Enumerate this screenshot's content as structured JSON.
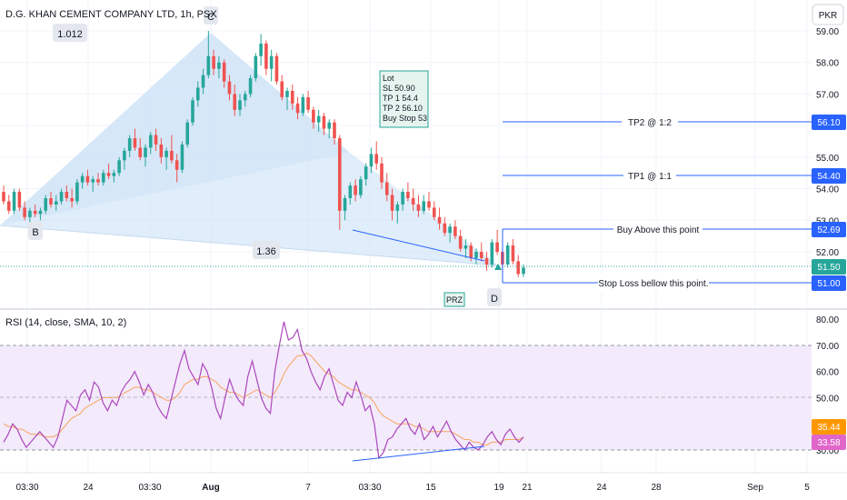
{
  "header": {
    "title": "D.G. KHAN CEMENT COMPANY LTD, 1h, PSX",
    "currency": "PKR"
  },
  "rsi_title": "RSI (14, close, SMA, 10, 2)",
  "colors": {
    "up": "#26a69a",
    "down": "#ef5350",
    "pattern_fill": "#cfe3f7",
    "line_blue": "#2962ff",
    "rsi": "#ab47bc",
    "rsi_sma": "#f7a35c",
    "rsi_band": "#f3eafb",
    "label_blue": "#2962ff",
    "label_green": "#26a69a",
    "label_red": "#ef5350",
    "label_orange": "#ff9800",
    "label_pink": "#e066c9"
  },
  "chart_data": [
    {
      "type": "candlestick",
      "ylim": [
        50.4,
        59.2
      ],
      "y_ticks": [
        "59.00",
        "58.00",
        "57.00",
        "56.00",
        "55.00",
        "54.00",
        "53.00",
        "52.00"
      ],
      "x_ticks": [
        "03:30",
        "24",
        "03:30",
        "Aug",
        "7",
        "03:30",
        "15",
        "19",
        "21",
        "24",
        "28",
        "Sep",
        "5"
      ],
      "harmonic_points": [
        {
          "name": "B",
          "value": "B"
        },
        {
          "name": "C",
          "value": "C"
        },
        {
          "name": "D",
          "value": "D"
        }
      ],
      "ratios": [
        "1.012",
        "1.36"
      ],
      "zone_label": "PRZ",
      "trade_box": [
        "Lot",
        "SL  50.90",
        "TP 1  54.4",
        "TP 2  56.10",
        "Buy Stop  53"
      ],
      "levels": [
        {
          "label": "TP2 @ 1:2",
          "price": 56.1,
          "tag": "56.10"
        },
        {
          "label": "TP1 @ 1:1",
          "price": 54.4,
          "tag": "54.40"
        },
        {
          "label": "Buy Above this point",
          "price": 52.69,
          "tag": "52.69"
        },
        {
          "label": "Stop Loss bellow this point.",
          "price": 51.0,
          "tag": "51.00"
        }
      ],
      "last_price": "51.50",
      "ohlc": [
        [
          53.9,
          54.1,
          53.5,
          53.6
        ],
        [
          53.6,
          53.8,
          53.2,
          53.3
        ],
        [
          53.3,
          54.0,
          53.2,
          53.9
        ],
        [
          53.9,
          54.0,
          53.3,
          53.4
        ],
        [
          53.4,
          53.6,
          53.0,
          53.1
        ],
        [
          53.1,
          53.4,
          52.9,
          53.3
        ],
        [
          53.3,
          53.5,
          53.1,
          53.2
        ],
        [
          53.2,
          53.4,
          53.0,
          53.3
        ],
        [
          53.3,
          53.8,
          53.2,
          53.7
        ],
        [
          53.7,
          53.9,
          53.4,
          53.5
        ],
        [
          53.5,
          53.8,
          53.3,
          53.6
        ],
        [
          53.6,
          54.0,
          53.5,
          53.9
        ],
        [
          53.9,
          54.1,
          53.6,
          53.7
        ],
        [
          53.7,
          54.0,
          53.4,
          53.6
        ],
        [
          53.6,
          54.3,
          53.5,
          54.2
        ],
        [
          54.2,
          54.5,
          54.0,
          54.4
        ],
        [
          54.4,
          54.6,
          54.1,
          54.2
        ],
        [
          54.2,
          54.4,
          53.9,
          54.3
        ],
        [
          54.3,
          54.5,
          54.1,
          54.2
        ],
        [
          54.2,
          54.6,
          54.1,
          54.5
        ],
        [
          54.5,
          54.8,
          54.3,
          54.4
        ],
        [
          54.4,
          54.6,
          54.2,
          54.5
        ],
        [
          54.5,
          55.0,
          54.4,
          54.9
        ],
        [
          54.9,
          55.3,
          54.6,
          55.2
        ],
        [
          55.2,
          55.7,
          55.0,
          55.6
        ],
        [
          55.6,
          55.9,
          55.2,
          55.3
        ],
        [
          55.3,
          55.6,
          54.9,
          55.0
        ],
        [
          55.0,
          55.4,
          54.7,
          55.3
        ],
        [
          55.3,
          55.8,
          55.1,
          55.7
        ],
        [
          55.7,
          55.9,
          55.2,
          55.4
        ],
        [
          55.4,
          55.6,
          54.8,
          55.0
        ],
        [
          55.0,
          55.3,
          54.6,
          55.2
        ],
        [
          55.2,
          55.7,
          54.8,
          54.9
        ],
        [
          54.9,
          55.1,
          54.2,
          54.6
        ],
        [
          54.6,
          55.5,
          54.5,
          55.4
        ],
        [
          55.4,
          56.2,
          55.3,
          56.1
        ],
        [
          56.1,
          56.9,
          56.0,
          56.8
        ],
        [
          56.8,
          57.4,
          56.6,
          57.2
        ],
        [
          57.2,
          57.8,
          57.0,
          57.6
        ],
        [
          57.6,
          59.0,
          57.5,
          58.2
        ],
        [
          58.2,
          58.4,
          57.6,
          57.8
        ],
        [
          57.8,
          58.2,
          57.5,
          58.0
        ],
        [
          58.0,
          58.1,
          57.2,
          57.4
        ],
        [
          57.4,
          57.6,
          56.8,
          57.0
        ],
        [
          57.0,
          57.3,
          56.3,
          56.5
        ],
        [
          56.5,
          57.0,
          56.3,
          56.8
        ],
        [
          56.8,
          57.1,
          56.6,
          57.0
        ],
        [
          57.0,
          57.6,
          56.9,
          57.5
        ],
        [
          57.5,
          58.3,
          57.4,
          58.2
        ],
        [
          58.2,
          58.9,
          57.9,
          58.6
        ],
        [
          58.6,
          58.7,
          57.6,
          57.8
        ],
        [
          57.8,
          58.4,
          57.4,
          58.2
        ],
        [
          58.2,
          58.3,
          57.3,
          57.4
        ],
        [
          57.4,
          57.6,
          56.8,
          56.9
        ],
        [
          56.9,
          57.2,
          56.5,
          57.1
        ],
        [
          57.1,
          57.3,
          56.5,
          56.7
        ],
        [
          56.7,
          56.9,
          56.2,
          56.4
        ],
        [
          56.4,
          57.0,
          56.3,
          56.9
        ],
        [
          56.9,
          57.1,
          56.4,
          56.5
        ],
        [
          56.5,
          56.6,
          55.9,
          56.1
        ],
        [
          56.1,
          56.5,
          55.8,
          56.3
        ],
        [
          56.3,
          56.4,
          55.7,
          55.9
        ],
        [
          55.9,
          56.2,
          55.6,
          56.1
        ],
        [
          56.1,
          56.2,
          55.4,
          55.6
        ],
        [
          55.6,
          55.7,
          52.7,
          53.3
        ],
        [
          53.3,
          53.8,
          53.0,
          53.7
        ],
        [
          53.7,
          54.2,
          53.5,
          54.1
        ],
        [
          54.1,
          54.3,
          53.6,
          53.8
        ],
        [
          53.8,
          54.4,
          53.7,
          54.3
        ],
        [
          54.3,
          54.8,
          54.1,
          54.7
        ],
        [
          54.7,
          55.3,
          54.5,
          55.1
        ],
        [
          55.1,
          55.5,
          54.6,
          54.8
        ],
        [
          54.8,
          55.0,
          54.0,
          54.2
        ],
        [
          54.2,
          54.5,
          53.6,
          53.8
        ],
        [
          53.8,
          54.0,
          53.0,
          53.3
        ],
        [
          53.3,
          53.6,
          52.9,
          53.5
        ],
        [
          53.5,
          54.0,
          53.3,
          53.9
        ],
        [
          53.9,
          54.2,
          53.6,
          53.7
        ],
        [
          53.7,
          54.0,
          53.3,
          53.5
        ],
        [
          53.5,
          53.8,
          53.1,
          53.3
        ],
        [
          53.3,
          53.8,
          53.2,
          53.6
        ],
        [
          53.6,
          53.9,
          53.3,
          53.4
        ],
        [
          53.4,
          53.6,
          53.0,
          53.1
        ],
        [
          53.1,
          53.4,
          52.7,
          52.9
        ],
        [
          52.9,
          53.1,
          52.5,
          52.6
        ],
        [
          52.6,
          52.9,
          52.3,
          52.8
        ],
        [
          52.8,
          53.0,
          52.4,
          52.5
        ],
        [
          52.5,
          52.7,
          52.0,
          52.1
        ],
        [
          52.1,
          52.4,
          51.8,
          52.2
        ],
        [
          52.2,
          52.3,
          51.7,
          51.8
        ],
        [
          51.8,
          52.1,
          51.6,
          52.0
        ],
        [
          52.0,
          52.3,
          51.7,
          51.8
        ],
        [
          51.8,
          52.0,
          51.4,
          51.6
        ],
        [
          51.6,
          52.4,
          51.5,
          52.3
        ],
        [
          52.3,
          52.7,
          51.9,
          52.0
        ],
        [
          52.0,
          52.1,
          51.4,
          51.6
        ],
        [
          51.6,
          52.3,
          51.5,
          52.2
        ],
        [
          52.2,
          52.4,
          51.6,
          51.7
        ],
        [
          51.7,
          51.9,
          51.2,
          51.3
        ],
        [
          51.3,
          51.6,
          51.2,
          51.5
        ]
      ]
    },
    {
      "type": "line",
      "ylim": [
        25,
        82
      ],
      "y_ticks": [
        "80.00",
        "70.00",
        "60.00",
        "50.00",
        "40.00",
        "30.00"
      ],
      "band": [
        30,
        70
      ],
      "mid": 50,
      "series": [
        {
          "tag": "35.44"
        },
        {
          "tag": "33.58"
        }
      ],
      "rsi": [
        33,
        36,
        40,
        38,
        34,
        31,
        33,
        35,
        37,
        35,
        33,
        31,
        35,
        42,
        49,
        47,
        45,
        51,
        53,
        49,
        56,
        54,
        48,
        45,
        49,
        47,
        52,
        55,
        57,
        60,
        56,
        51,
        55,
        52,
        47,
        44,
        42,
        49,
        56,
        63,
        68,
        61,
        58,
        55,
        63,
        60,
        54,
        46,
        42,
        50,
        57,
        52,
        49,
        47,
        58,
        64,
        57,
        50,
        46,
        44,
        60,
        70,
        79,
        72,
        73,
        76,
        68,
        65,
        60,
        56,
        53,
        58,
        61,
        55,
        49,
        47,
        52,
        50,
        56,
        51,
        45,
        47,
        40,
        27,
        29,
        34,
        35,
        38,
        40,
        42,
        38,
        36,
        40,
        34,
        36,
        39,
        35,
        38,
        41,
        37,
        34,
        32,
        30,
        33,
        31,
        30,
        32,
        35,
        37,
        34,
        32,
        36,
        38,
        35,
        33,
        35
      ],
      "rsi_sma": [
        40,
        39,
        39,
        38,
        38,
        37,
        36,
        36,
        36,
        35,
        35,
        35,
        36,
        38,
        40,
        42,
        43,
        44,
        46,
        47,
        48,
        49,
        50,
        50,
        50,
        50,
        51,
        52,
        53,
        54,
        54,
        53,
        53,
        52,
        51,
        50,
        49,
        49,
        50,
        52,
        55,
        56,
        57,
        57,
        58,
        58,
        57,
        56,
        54,
        53,
        52,
        52,
        51,
        50,
        51,
        52,
        53,
        52,
        51,
        50,
        52,
        55,
        59,
        62,
        64,
        66,
        66,
        67,
        66,
        64,
        62,
        60,
        59,
        58,
        56,
        55,
        54,
        53,
        53,
        52,
        51,
        50,
        48,
        45,
        43,
        42,
        41,
        40,
        40,
        40,
        40,
        39,
        39,
        38,
        37,
        37,
        37,
        37,
        37,
        37,
        36,
        35,
        34,
        34,
        33,
        33,
        32,
        32,
        33,
        33,
        33,
        34,
        34,
        34,
        34,
        35
      ]
    }
  ]
}
